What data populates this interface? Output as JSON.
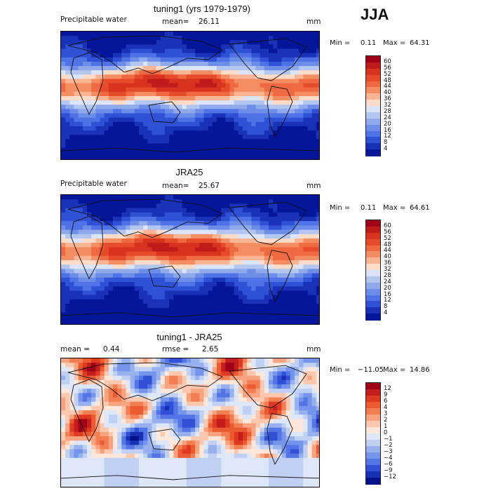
{
  "season": "JJA",
  "chart_data": [
    {
      "type": "heatmap",
      "title": "tuning1 (yrs 1979-1979)",
      "field_label": "Precipitable water",
      "mean_label": "mean=",
      "mean": "26.11",
      "unit": "mm",
      "min_label": "Min =",
      "min": "0.11",
      "max_label": "Max =",
      "max": "64.31",
      "colorbar_levels": [
        "60",
        "56",
        "52",
        "48",
        "44",
        "40",
        "36",
        "32",
        "28",
        "24",
        "20",
        "16",
        "12",
        "8",
        "4"
      ],
      "colorbar_colors": [
        "#a0001a",
        "#c01b1b",
        "#d8331f",
        "#e64b2a",
        "#ef6a40",
        "#f58d62",
        "#f8b493",
        "#fcdcc8",
        "#dbe5f7",
        "#b3c6f0",
        "#8fa9eb",
        "#6d8ee8",
        "#4f72e6",
        "#2f51d6",
        "#1932b8",
        "#06169a"
      ]
    },
    {
      "type": "heatmap",
      "title": "JRA25",
      "field_label": "Precipitable water",
      "mean_label": "mean=",
      "mean": "25.67",
      "unit": "mm",
      "min_label": "Min =",
      "min": "0.11",
      "max_label": "Max =",
      "max": "64.61",
      "colorbar_levels": [
        "60",
        "56",
        "52",
        "48",
        "44",
        "40",
        "36",
        "32",
        "28",
        "24",
        "20",
        "16",
        "12",
        "8",
        "4"
      ],
      "colorbar_colors": [
        "#a0001a",
        "#c01b1b",
        "#d8331f",
        "#e64b2a",
        "#ef6a40",
        "#f58d62",
        "#f8b493",
        "#fcdcc8",
        "#dbe5f7",
        "#b3c6f0",
        "#8fa9eb",
        "#6d8ee8",
        "#4f72e6",
        "#2f51d6",
        "#1932b8",
        "#06169a"
      ]
    },
    {
      "type": "heatmap",
      "title": "tuning1 - JRA25",
      "mean_label": "mean =",
      "mean": "0.44",
      "rmse_label": "rmse =",
      "rmse": "2.65",
      "unit": "mm",
      "min_label": "Min =",
      "min": "−11.05",
      "max_label": "Max =",
      "max": "14.86",
      "colorbar_levels": [
        "12",
        "9",
        "6",
        "4",
        "3",
        "2",
        "1",
        "0",
        "−1",
        "−2",
        "−3",
        "−4",
        "−6",
        "−9",
        "−12"
      ],
      "colorbar_colors": [
        "#a0001a",
        "#c41d1d",
        "#de3a22",
        "#ec5a32",
        "#f27e52",
        "#f8a37f",
        "#fbc7ae",
        "#fde6da",
        "#dde7f8",
        "#bfd0f3",
        "#98b1ee",
        "#7595ea",
        "#5375e6",
        "#3050d6",
        "#1730b4",
        "#05128c"
      ]
    }
  ]
}
